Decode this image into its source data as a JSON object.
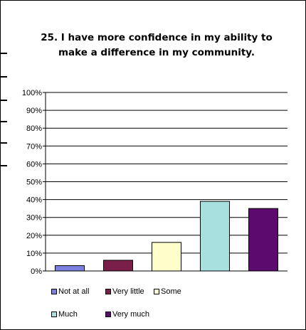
{
  "chart_data": {
    "type": "bar",
    "title": "25.  I have more confidence in my ability to make a difference in my community.",
    "categories": [
      "Not at all",
      "Very little",
      "Some",
      "Much",
      "Very much"
    ],
    "values": [
      3,
      6,
      16,
      39,
      35
    ],
    "colors": [
      "#7b7fe0",
      "#7a1f4a",
      "#ffffcc",
      "#a8dfdf",
      "#5c0a6e"
    ],
    "ylim": [
      0,
      100
    ],
    "y_ticks": [
      "0%",
      "10%",
      "20%",
      "30%",
      "40%",
      "50%",
      "60%",
      "70%",
      "80%",
      "90%",
      "100%"
    ],
    "grid": true,
    "legend_position": "bottom",
    "xlabel": "",
    "ylabel": ""
  }
}
